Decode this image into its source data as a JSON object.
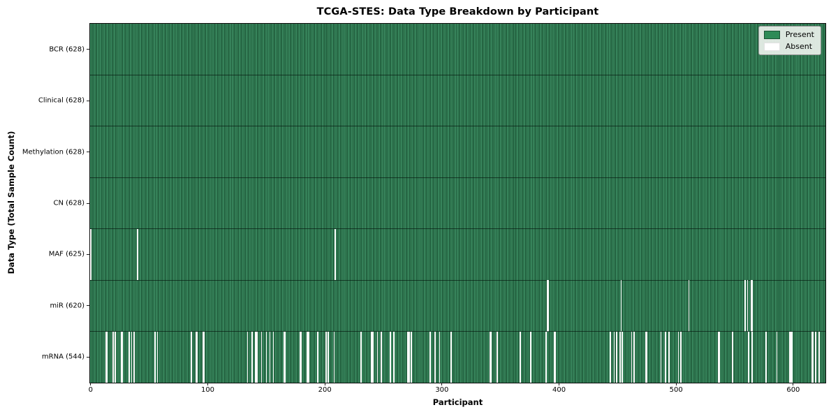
{
  "colors": {
    "present": "#2e8b57",
    "present_stripe_light": "#3e9065",
    "present_stripe_dark": "#1d5838",
    "absent": "#fafafa",
    "legend_bg": "#ecf1ec",
    "legend_border": "#8f8f8f",
    "spine": "#0c0c0c"
  },
  "chart_data": {
    "type": "heatmap",
    "title": "TCGA-STES: Data Type Breakdown by Participant",
    "xlabel": "Participant",
    "ylabel": "Data Type (Total Sample Count)",
    "n_participants": 628,
    "xlim": [
      -0.5,
      627.5
    ],
    "x_ticks": [
      0,
      100,
      200,
      300,
      400,
      500,
      600
    ],
    "grid": false,
    "legend": [
      "Present",
      "Absent"
    ],
    "legend_position": "upper right",
    "rows": [
      {
        "label": "BCR (628)",
        "data_type": "BCR",
        "present_count": 628,
        "absent_count": 0,
        "absent_participants": []
      },
      {
        "label": "Clinical (628)",
        "data_type": "Clinical",
        "present_count": 628,
        "absent_count": 0,
        "absent_participants": []
      },
      {
        "label": "Methylation (628)",
        "data_type": "Methylation",
        "present_count": 628,
        "absent_count": 0,
        "absent_participants": []
      },
      {
        "label": "CN (628)",
        "data_type": "CN",
        "present_count": 628,
        "absent_count": 0,
        "absent_participants": []
      },
      {
        "label": "MAF (625)",
        "data_type": "MAF",
        "present_count": 625,
        "absent_count": 3,
        "absent_participants": [
          0,
          40,
          209
        ]
      },
      {
        "label": "miR (620)",
        "data_type": "miR",
        "present_count": 620,
        "absent_count": 8,
        "absent_participants": [
          390,
          391,
          453,
          511,
          559,
          561,
          564,
          565
        ]
      },
      {
        "label": "mRNA (544)",
        "data_type": "mRNA",
        "present_count": 544,
        "absent_count": 84,
        "absent_participants": [
          13,
          14,
          19,
          21,
          26,
          27,
          33,
          35,
          37,
          55,
          57,
          86,
          90,
          91,
          96,
          97,
          134,
          138,
          141,
          142,
          146,
          150,
          153,
          156,
          165,
          166,
          179,
          180,
          185,
          186,
          194,
          201,
          203,
          208,
          231,
          240,
          241,
          245,
          248,
          256,
          259,
          271,
          272,
          274,
          290,
          294,
          298,
          308,
          341,
          342,
          347,
          367,
          376,
          389,
          396,
          397,
          444,
          447,
          449,
          452,
          454,
          462,
          464,
          474,
          475,
          487,
          491,
          494,
          502,
          504,
          536,
          537,
          548,
          562,
          565,
          577,
          586,
          597,
          598,
          599,
          616,
          617,
          619,
          622
        ]
      }
    ]
  }
}
